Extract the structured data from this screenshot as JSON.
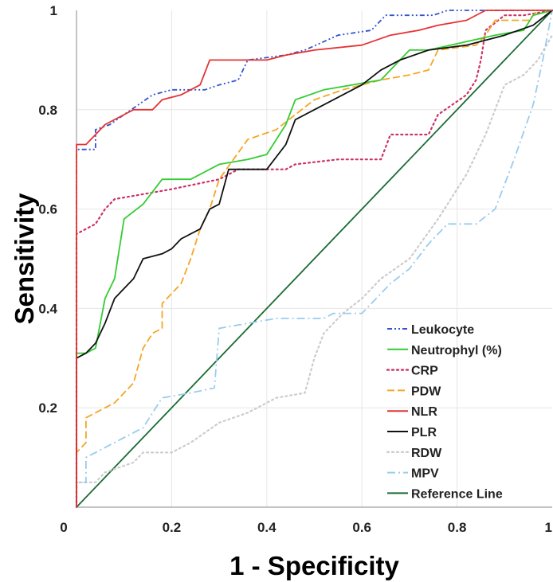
{
  "chart_data": {
    "type": "line",
    "xlabel": "1 - Specificity",
    "ylabel": "Sensitivity",
    "xlim": [
      0,
      1
    ],
    "ylim": [
      0,
      1
    ],
    "x_ticks": [
      "0",
      "0.2",
      "0.4",
      "0.6",
      "0.8",
      "1"
    ],
    "y_ticks": [
      "0.2",
      "0.4",
      "0.6",
      "0.8",
      "1"
    ],
    "grid": true,
    "legend_position": "bottom-right",
    "series": [
      {
        "name": "Leukocyte",
        "color": "#3355cc",
        "style": "dash-dot-dot",
        "points": [
          [
            0,
            0
          ],
          [
            0,
            0.72
          ],
          [
            0.04,
            0.72
          ],
          [
            0.04,
            0.76
          ],
          [
            0.07,
            0.77
          ],
          [
            0.1,
            0.79
          ],
          [
            0.13,
            0.81
          ],
          [
            0.16,
            0.83
          ],
          [
            0.2,
            0.84
          ],
          [
            0.27,
            0.84
          ],
          [
            0.3,
            0.85
          ],
          [
            0.34,
            0.86
          ],
          [
            0.36,
            0.9
          ],
          [
            0.44,
            0.91
          ],
          [
            0.48,
            0.92
          ],
          [
            0.55,
            0.95
          ],
          [
            0.62,
            0.96
          ],
          [
            0.65,
            0.99
          ],
          [
            0.72,
            0.99
          ],
          [
            0.75,
            0.99
          ],
          [
            0.78,
            1
          ],
          [
            1,
            1
          ]
        ]
      },
      {
        "name": "Neutrophyl (%)",
        "color": "#33cc33",
        "style": "solid",
        "points": [
          [
            0,
            0
          ],
          [
            0,
            0.31
          ],
          [
            0.02,
            0.31
          ],
          [
            0.04,
            0.32
          ],
          [
            0.06,
            0.42
          ],
          [
            0.08,
            0.46
          ],
          [
            0.1,
            0.58
          ],
          [
            0.14,
            0.61
          ],
          [
            0.18,
            0.66
          ],
          [
            0.24,
            0.66
          ],
          [
            0.3,
            0.69
          ],
          [
            0.36,
            0.7
          ],
          [
            0.4,
            0.71
          ],
          [
            0.44,
            0.77
          ],
          [
            0.46,
            0.82
          ],
          [
            0.52,
            0.84
          ],
          [
            0.58,
            0.85
          ],
          [
            0.64,
            0.86
          ],
          [
            0.7,
            0.92
          ],
          [
            0.74,
            0.92
          ],
          [
            0.88,
            0.95
          ],
          [
            0.94,
            0.96
          ],
          [
            0.96,
            0.99
          ],
          [
            1,
            1
          ]
        ]
      },
      {
        "name": "CRP",
        "color": "#cc3366",
        "style": "dotted",
        "points": [
          [
            0,
            0
          ],
          [
            0,
            0.55
          ],
          [
            0.04,
            0.57
          ],
          [
            0.06,
            0.6
          ],
          [
            0.08,
            0.62
          ],
          [
            0.14,
            0.63
          ],
          [
            0.2,
            0.64
          ],
          [
            0.3,
            0.66
          ],
          [
            0.34,
            0.68
          ],
          [
            0.44,
            0.68
          ],
          [
            0.46,
            0.69
          ],
          [
            0.55,
            0.7
          ],
          [
            0.64,
            0.7
          ],
          [
            0.66,
            0.75
          ],
          [
            0.74,
            0.75
          ],
          [
            0.76,
            0.79
          ],
          [
            0.82,
            0.83
          ],
          [
            0.84,
            0.86
          ],
          [
            0.85,
            0.9
          ],
          [
            0.86,
            0.96
          ],
          [
            0.9,
            0.99
          ],
          [
            0.94,
            0.99
          ],
          [
            1,
            1
          ]
        ]
      },
      {
        "name": "PDW",
        "color": "#f5a623",
        "style": "long-dash",
        "points": [
          [
            0,
            0
          ],
          [
            0,
            0.11
          ],
          [
            0.02,
            0.13
          ],
          [
            0.02,
            0.18
          ],
          [
            0.08,
            0.21
          ],
          [
            0.12,
            0.25
          ],
          [
            0.14,
            0.32
          ],
          [
            0.16,
            0.35
          ],
          [
            0.18,
            0.36
          ],
          [
            0.18,
            0.41
          ],
          [
            0.22,
            0.45
          ],
          [
            0.24,
            0.5
          ],
          [
            0.26,
            0.56
          ],
          [
            0.28,
            0.6
          ],
          [
            0.3,
            0.66
          ],
          [
            0.36,
            0.74
          ],
          [
            0.42,
            0.76
          ],
          [
            0.46,
            0.79
          ],
          [
            0.5,
            0.82
          ],
          [
            0.56,
            0.84
          ],
          [
            0.64,
            0.86
          ],
          [
            0.7,
            0.87
          ],
          [
            0.74,
            0.88
          ],
          [
            0.76,
            0.92
          ],
          [
            0.84,
            0.93
          ],
          [
            0.86,
            0.95
          ],
          [
            0.88,
            0.98
          ],
          [
            0.95,
            0.98
          ],
          [
            0.97,
            1
          ],
          [
            1,
            1
          ]
        ]
      },
      {
        "name": "NLR",
        "color": "#e63333",
        "style": "solid",
        "points": [
          [
            0,
            0
          ],
          [
            0,
            0.73
          ],
          [
            0.02,
            0.73
          ],
          [
            0.04,
            0.75
          ],
          [
            0.06,
            0.77
          ],
          [
            0.1,
            0.79
          ],
          [
            0.12,
            0.8
          ],
          [
            0.16,
            0.8
          ],
          [
            0.18,
            0.82
          ],
          [
            0.22,
            0.83
          ],
          [
            0.26,
            0.85
          ],
          [
            0.28,
            0.9
          ],
          [
            0.4,
            0.9
          ],
          [
            0.44,
            0.91
          ],
          [
            0.5,
            0.92
          ],
          [
            0.6,
            0.93
          ],
          [
            0.66,
            0.95
          ],
          [
            0.72,
            0.96
          ],
          [
            0.76,
            0.97
          ],
          [
            0.82,
            0.98
          ],
          [
            0.86,
            1
          ],
          [
            1,
            1
          ]
        ]
      },
      {
        "name": "PLR",
        "color": "#111111",
        "style": "solid",
        "points": [
          [
            0,
            0
          ],
          [
            0,
            0.3
          ],
          [
            0.02,
            0.31
          ],
          [
            0.04,
            0.33
          ],
          [
            0.06,
            0.37
          ],
          [
            0.08,
            0.42
          ],
          [
            0.1,
            0.44
          ],
          [
            0.12,
            0.46
          ],
          [
            0.14,
            0.5
          ],
          [
            0.18,
            0.51
          ],
          [
            0.2,
            0.52
          ],
          [
            0.22,
            0.54
          ],
          [
            0.26,
            0.56
          ],
          [
            0.28,
            0.6
          ],
          [
            0.3,
            0.61
          ],
          [
            0.32,
            0.68
          ],
          [
            0.4,
            0.68
          ],
          [
            0.44,
            0.73
          ],
          [
            0.46,
            0.78
          ],
          [
            0.5,
            0.8
          ],
          [
            0.56,
            0.83
          ],
          [
            0.6,
            0.85
          ],
          [
            0.64,
            0.88
          ],
          [
            0.68,
            0.9
          ],
          [
            0.74,
            0.92
          ],
          [
            0.82,
            0.93
          ],
          [
            0.9,
            0.95
          ],
          [
            0.96,
            0.97
          ],
          [
            1,
            1
          ]
        ]
      },
      {
        "name": "RDW",
        "color": "#cccccc",
        "style": "dotted",
        "points": [
          [
            0,
            0
          ],
          [
            0,
            0.05
          ],
          [
            0.04,
            0.05
          ],
          [
            0.06,
            0.07
          ],
          [
            0.12,
            0.09
          ],
          [
            0.14,
            0.11
          ],
          [
            0.2,
            0.11
          ],
          [
            0.24,
            0.13
          ],
          [
            0.3,
            0.17
          ],
          [
            0.36,
            0.19
          ],
          [
            0.42,
            0.22
          ],
          [
            0.48,
            0.23
          ],
          [
            0.5,
            0.3
          ],
          [
            0.52,
            0.35
          ],
          [
            0.56,
            0.39
          ],
          [
            0.6,
            0.42
          ],
          [
            0.64,
            0.46
          ],
          [
            0.7,
            0.5
          ],
          [
            0.76,
            0.58
          ],
          [
            0.82,
            0.67
          ],
          [
            0.86,
            0.75
          ],
          [
            0.9,
            0.85
          ],
          [
            0.94,
            0.87
          ],
          [
            0.97,
            0.9
          ],
          [
            1,
            0.95
          ]
        ]
      },
      {
        "name": "MPV",
        "color": "#99ccee",
        "style": "dash-dot",
        "points": [
          [
            0,
            0
          ],
          [
            0,
            0.05
          ],
          [
            0.02,
            0.05
          ],
          [
            0.02,
            0.1
          ],
          [
            0.04,
            0.11
          ],
          [
            0.1,
            0.14
          ],
          [
            0.14,
            0.16
          ],
          [
            0.18,
            0.22
          ],
          [
            0.24,
            0.23
          ],
          [
            0.29,
            0.24
          ],
          [
            0.3,
            0.36
          ],
          [
            0.36,
            0.37
          ],
          [
            0.42,
            0.38
          ],
          [
            0.52,
            0.38
          ],
          [
            0.54,
            0.39
          ],
          [
            0.6,
            0.39
          ],
          [
            0.62,
            0.41
          ],
          [
            0.66,
            0.45
          ],
          [
            0.7,
            0.48
          ],
          [
            0.74,
            0.53
          ],
          [
            0.78,
            0.57
          ],
          [
            0.84,
            0.57
          ],
          [
            0.88,
            0.6
          ],
          [
            0.92,
            0.7
          ],
          [
            0.96,
            0.81
          ],
          [
            0.98,
            0.9
          ],
          [
            1,
            1
          ]
        ]
      },
      {
        "name": "Reference Line",
        "color": "#1a6b33",
        "style": "solid",
        "points": [
          [
            0,
            0
          ],
          [
            1,
            1
          ]
        ]
      }
    ]
  }
}
